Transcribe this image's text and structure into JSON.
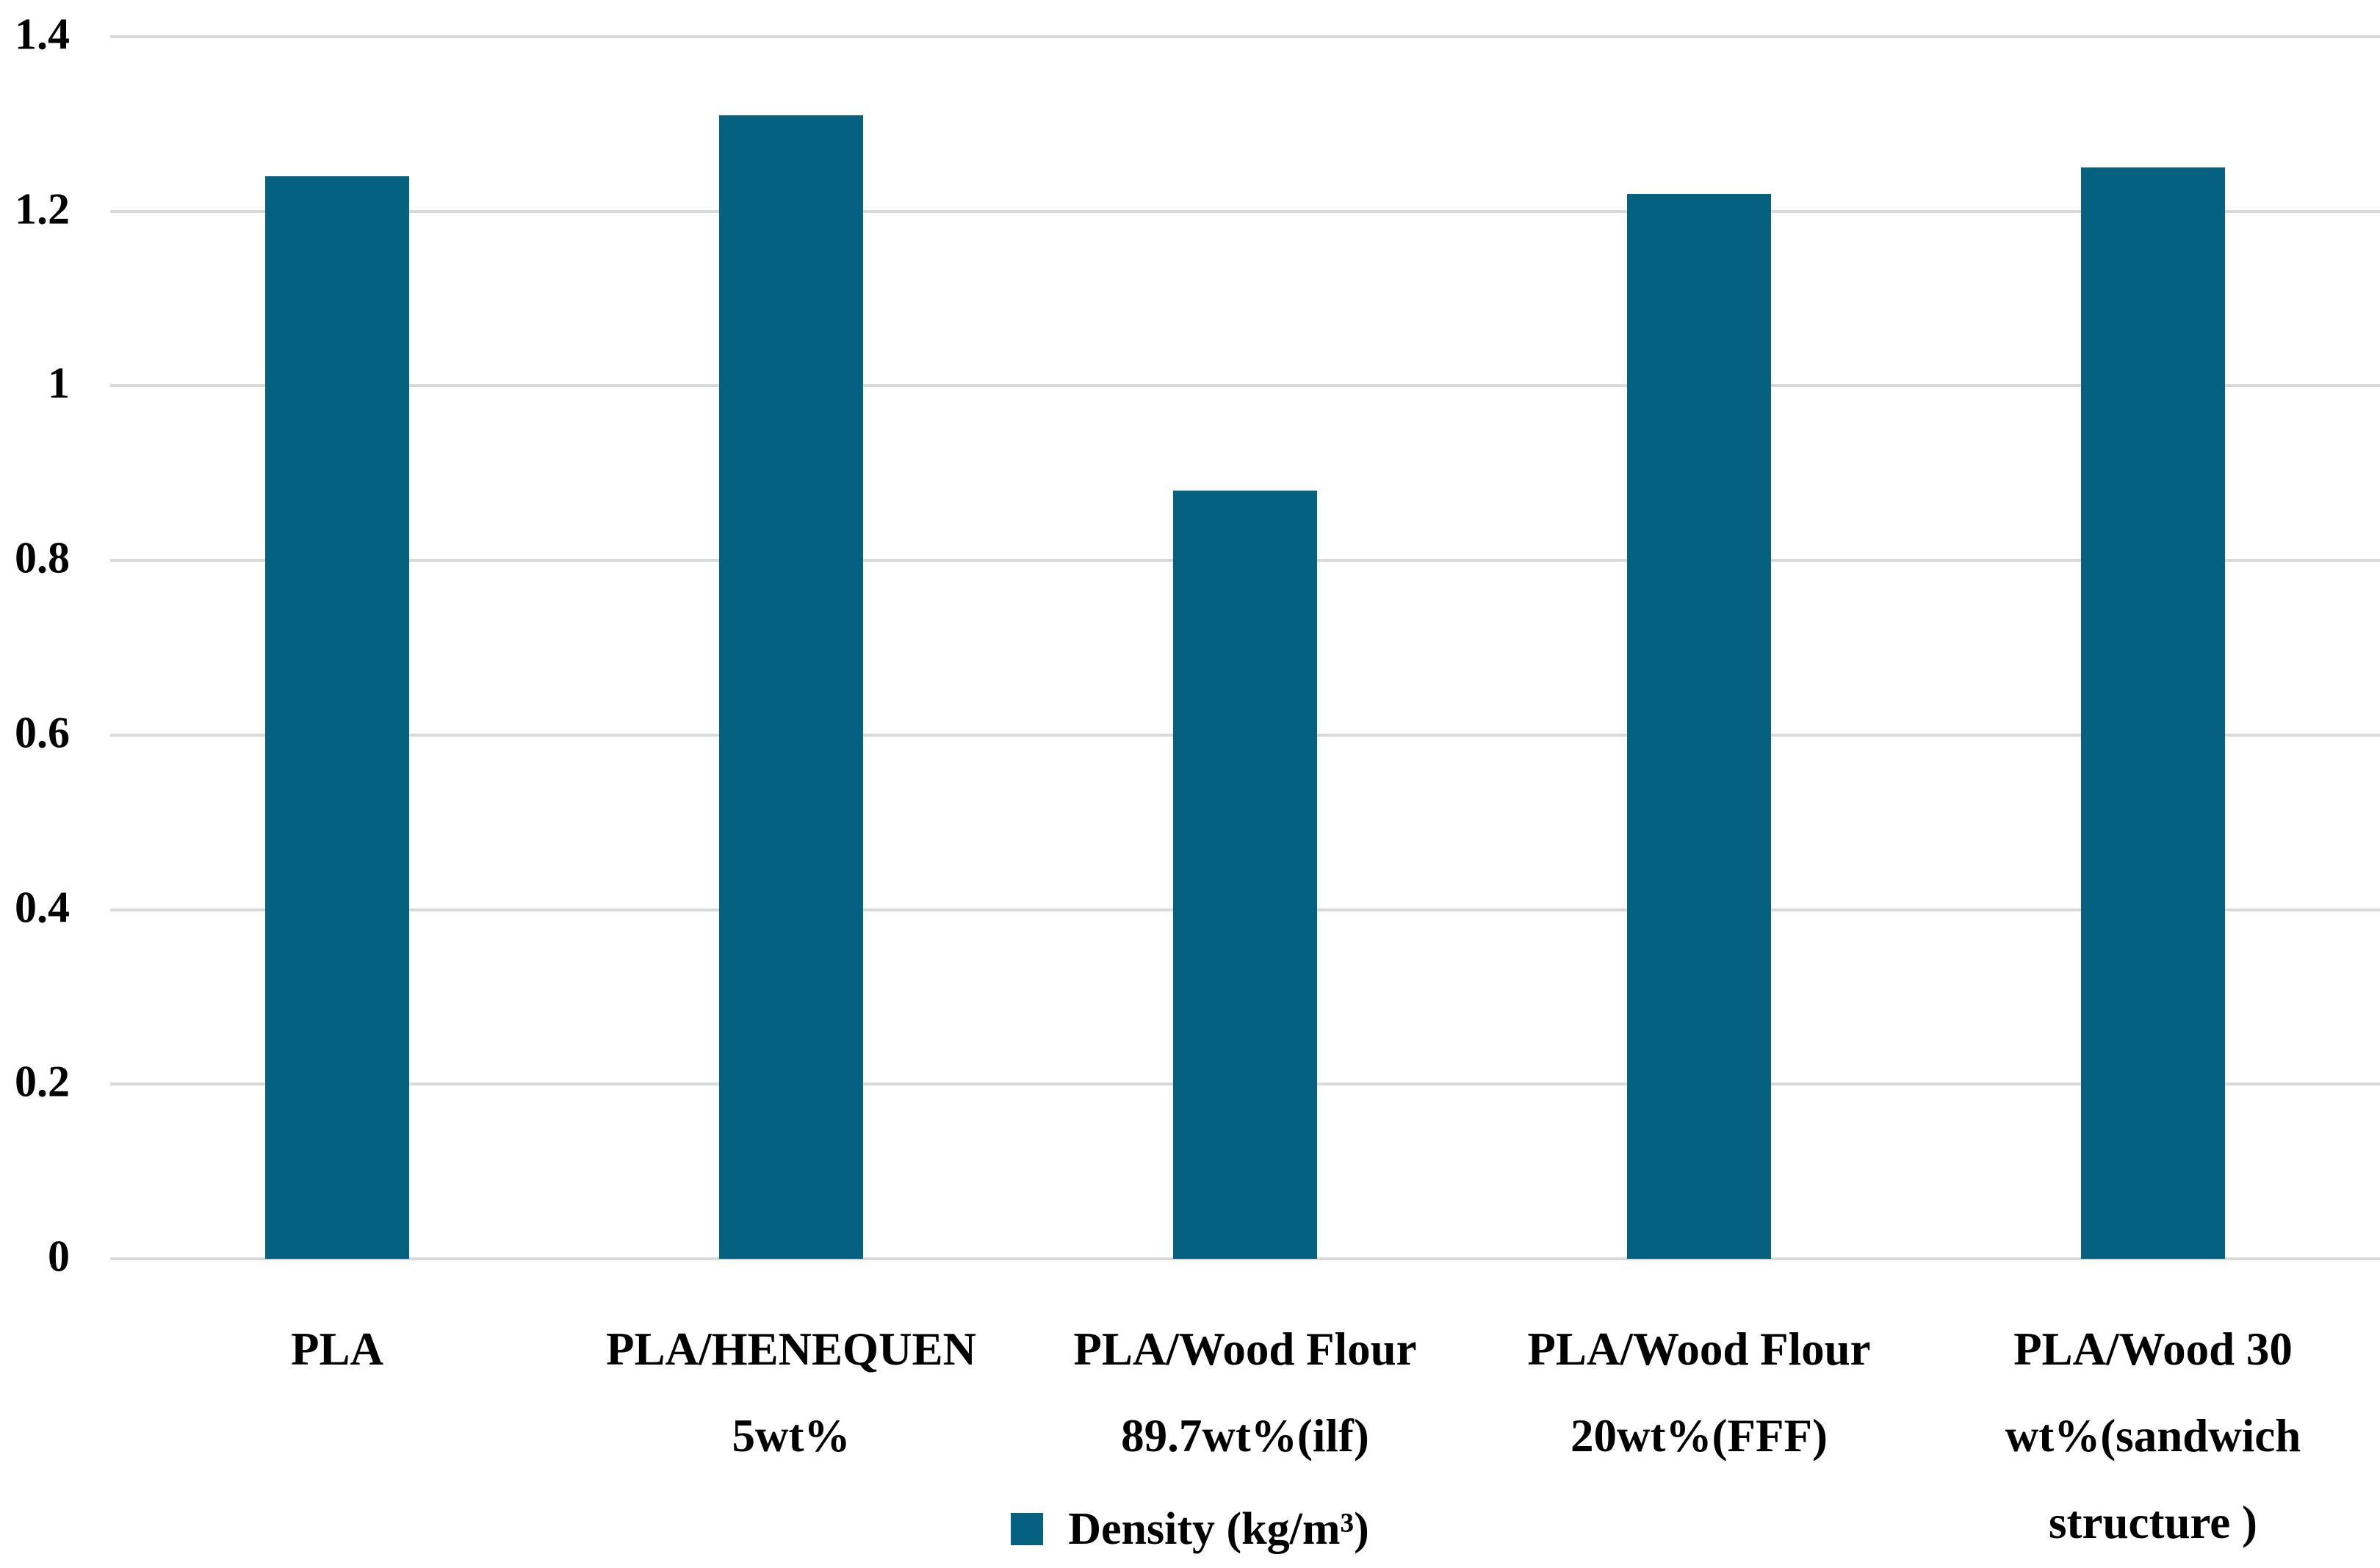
{
  "chart_data": {
    "type": "bar",
    "title": "",
    "xlabel": "",
    "ylabel": "",
    "categories": [
      "PLA",
      "PLA/HENEQUEN 5wt%",
      "PLA/Wood Flour 89.7wt%(ilf)",
      "PLA/Wood Flour 20wt%(FFF)",
      "PLA/Wood 30 wt%(sandwich structure )"
    ],
    "category_lines": [
      [
        "PLA"
      ],
      [
        "PLA/HENEQUEN",
        "5wt%"
      ],
      [
        "PLA/Wood Flour",
        "89.7wt%(ilf)"
      ],
      [
        "PLA/Wood Flour",
        "20wt%(FFF)"
      ],
      [
        "PLA/Wood 30",
        "wt%(sandwich",
        "structure )"
      ]
    ],
    "series": [
      {
        "name": "Density (kg/m³)",
        "values": [
          1.24,
          1.31,
          0.88,
          1.22,
          1.25
        ]
      }
    ],
    "legend_label": "Density (kg/m³)",
    "legend_position": "bottom-center",
    "ylim": [
      0,
      1.4
    ],
    "ytick_labels": [
      "0",
      "0.2",
      "0.4",
      "0.6",
      "0.8",
      "1",
      "1.2",
      "1.4"
    ],
    "grid": true,
    "colors": {
      "bar": "#05617F",
      "gridline": "#D9D9D9",
      "text": "#000000",
      "background": "#FFFFFF"
    }
  }
}
